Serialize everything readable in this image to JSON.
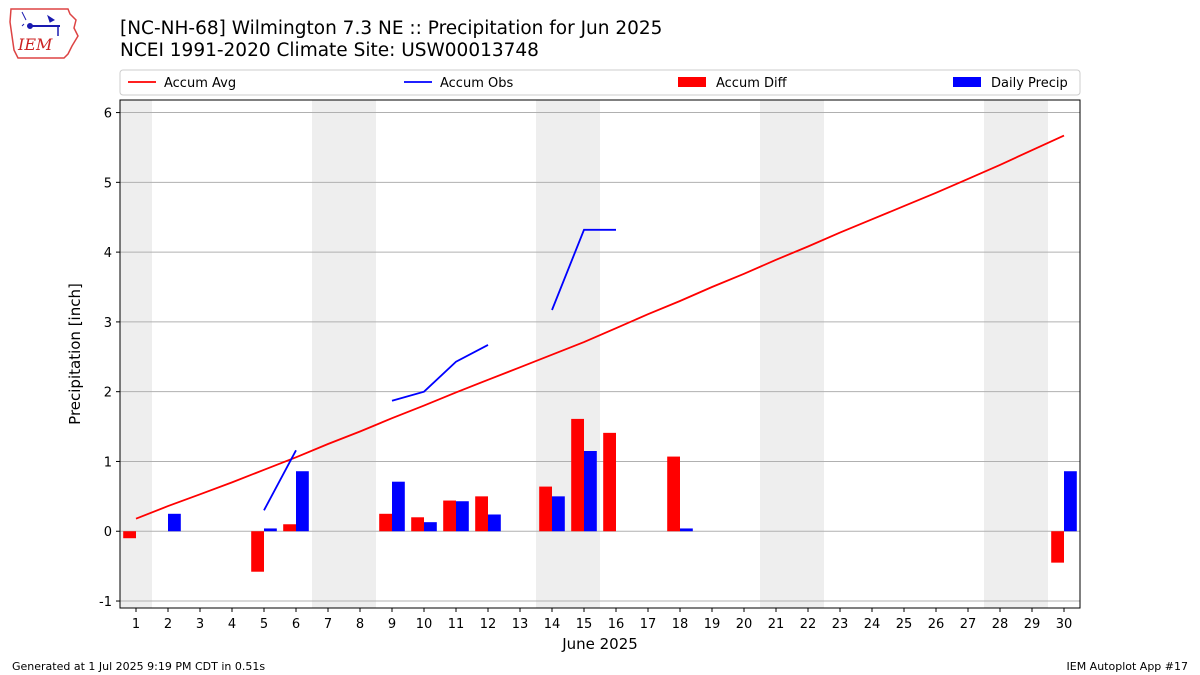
{
  "logo": {
    "text": "IEM",
    "icon": "iem-logo-iowa-weather-station"
  },
  "title_line1": "[NC-NH-68] Wilmington 7.3 NE :: Precipitation for Jun 2025",
  "title_line2": "NCEI 1991-2020 Climate Site: USW00013748",
  "footer_left": "Generated at 1 Jul 2025 9:19 PM CDT in 0.51s",
  "footer_right": "IEM Autoplot App #17",
  "chart_data": {
    "type": "bar",
    "xlabel": "June 2025",
    "ylabel": "Precipitation [inch]",
    "x": [
      1,
      2,
      3,
      4,
      5,
      6,
      7,
      8,
      9,
      10,
      11,
      12,
      13,
      14,
      15,
      16,
      17,
      18,
      19,
      20,
      21,
      22,
      23,
      24,
      25,
      26,
      27,
      28,
      29,
      30
    ],
    "xlim": [
      0.5,
      30.5
    ],
    "ylim": [
      -1.1,
      6.18
    ],
    "yticks": [
      -1,
      0,
      1,
      2,
      3,
      4,
      5,
      6
    ],
    "grid": "horizontal",
    "weekend_shading": [
      [
        0.5,
        1.5
      ],
      [
        6.5,
        8.5
      ],
      [
        13.5,
        15.5
      ],
      [
        20.5,
        22.5
      ],
      [
        27.5,
        29.5
      ]
    ],
    "legend": {
      "placement": "top"
    },
    "series": [
      {
        "name": "Accum Avg",
        "kind": "line",
        "color": "#ff0000",
        "values": [
          0.18,
          0.36,
          0.53,
          0.7,
          0.88,
          1.06,
          1.25,
          1.43,
          1.62,
          1.8,
          1.99,
          2.17,
          2.35,
          2.53,
          2.71,
          2.91,
          3.11,
          3.3,
          3.5,
          3.69,
          3.89,
          4.08,
          4.28,
          4.47,
          4.66,
          4.85,
          5.05,
          5.25,
          5.46,
          5.67
        ]
      },
      {
        "name": "Accum Obs",
        "kind": "line",
        "color": "#0000ff",
        "values": [
          null,
          null,
          null,
          null,
          0.3,
          1.16,
          null,
          null,
          1.87,
          2.0,
          2.43,
          2.67,
          null,
          3.17,
          4.32,
          4.32,
          null,
          null,
          null,
          null,
          null,
          null,
          null,
          null,
          null,
          null,
          null,
          null,
          null,
          null
        ]
      },
      {
        "name": "Accum Diff",
        "kind": "bar",
        "color": "#ff0000",
        "values": [
          -0.1,
          0,
          0,
          0,
          -0.58,
          0.1,
          0,
          0,
          0.25,
          0.2,
          0.44,
          0.5,
          0,
          0.64,
          1.61,
          1.41,
          0,
          1.07,
          0,
          0,
          0,
          0,
          0,
          0,
          0,
          0,
          0,
          0,
          0,
          -0.45
        ]
      },
      {
        "name": "Daily Precip",
        "kind": "bar",
        "color": "#0000ff",
        "values": [
          0,
          0.25,
          0,
          0,
          0.04,
          0.86,
          0,
          0,
          0.71,
          0.13,
          0.43,
          0.24,
          0,
          0.5,
          1.15,
          0,
          0,
          0.04,
          0,
          0,
          0,
          0,
          0,
          0,
          0,
          0,
          0,
          0,
          0,
          0.86
        ]
      }
    ]
  }
}
